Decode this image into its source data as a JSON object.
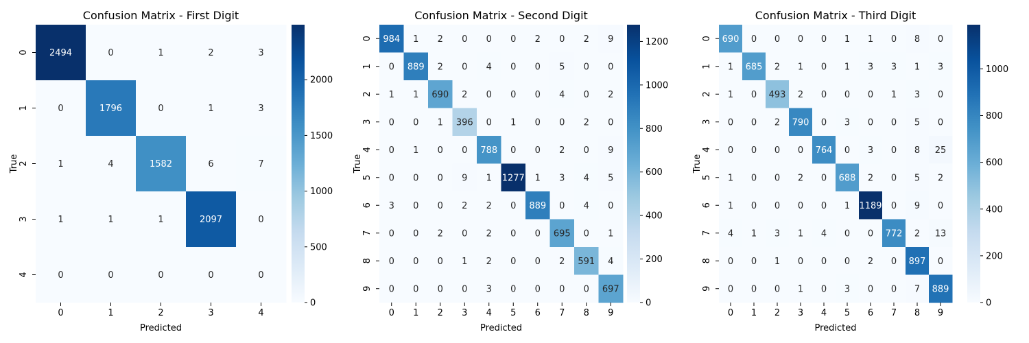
{
  "chart_data": [
    {
      "type": "heatmap",
      "title": "Confusion Matrix - First Digit",
      "xlabel": "Predicted",
      "ylabel": "True",
      "x_categories": [
        "0",
        "1",
        "2",
        "3",
        "4"
      ],
      "y_categories": [
        "0",
        "1",
        "2",
        "3",
        "4"
      ],
      "values": [
        [
          2494,
          0,
          1,
          2,
          3
        ],
        [
          0,
          1796,
          0,
          1,
          3
        ],
        [
          1,
          4,
          1582,
          6,
          7
        ],
        [
          1,
          1,
          1,
          2097,
          0
        ],
        [
          0,
          0,
          0,
          0,
          0
        ]
      ],
      "colormap": "Blues",
      "colorbar": {
        "range": [
          0,
          2494
        ],
        "ticks": [
          0,
          500,
          1000,
          1500,
          2000
        ]
      }
    },
    {
      "type": "heatmap",
      "title": "Confusion Matrix - Second Digit",
      "xlabel": "Predicted",
      "ylabel": "True",
      "x_categories": [
        "0",
        "1",
        "2",
        "3",
        "4",
        "5",
        "6",
        "7",
        "8",
        "9"
      ],
      "y_categories": [
        "0",
        "1",
        "2",
        "3",
        "4",
        "5",
        "6",
        "7",
        "8",
        "9"
      ],
      "values": [
        [
          984,
          1,
          2,
          0,
          0,
          0,
          2,
          0,
          2,
          9
        ],
        [
          0,
          889,
          2,
          0,
          4,
          0,
          0,
          5,
          0,
          0
        ],
        [
          1,
          1,
          690,
          2,
          0,
          0,
          0,
          4,
          0,
          2
        ],
        [
          0,
          0,
          1,
          396,
          0,
          1,
          0,
          0,
          2,
          0
        ],
        [
          0,
          1,
          0,
          0,
          788,
          0,
          0,
          2,
          0,
          9
        ],
        [
          0,
          0,
          0,
          9,
          1,
          1277,
          1,
          3,
          4,
          5
        ],
        [
          3,
          0,
          0,
          2,
          2,
          0,
          889,
          0,
          4,
          0
        ],
        [
          0,
          0,
          2,
          0,
          2,
          0,
          0,
          695,
          0,
          1
        ],
        [
          0,
          0,
          0,
          1,
          2,
          0,
          0,
          2,
          591,
          4
        ],
        [
          0,
          0,
          0,
          0,
          3,
          0,
          0,
          0,
          0,
          697
        ]
      ],
      "colormap": "Blues",
      "colorbar": {
        "range": [
          0,
          1277
        ],
        "ticks": [
          0,
          200,
          400,
          600,
          800,
          1000,
          1200
        ]
      }
    },
    {
      "type": "heatmap",
      "title": "Confusion Matrix - Third Digit",
      "xlabel": "Predicted",
      "ylabel": "True",
      "x_categories": [
        "0",
        "1",
        "2",
        "3",
        "4",
        "5",
        "6",
        "7",
        "8",
        "9"
      ],
      "y_categories": [
        "0",
        "1",
        "2",
        "3",
        "4",
        "5",
        "6",
        "7",
        "8",
        "9"
      ],
      "values": [
        [
          690,
          0,
          0,
          0,
          0,
          1,
          1,
          0,
          8,
          0
        ],
        [
          1,
          685,
          2,
          1,
          0,
          1,
          3,
          3,
          1,
          3
        ],
        [
          1,
          0,
          493,
          2,
          0,
          0,
          0,
          1,
          3,
          0
        ],
        [
          0,
          0,
          2,
          790,
          0,
          3,
          0,
          0,
          5,
          0
        ],
        [
          0,
          0,
          0,
          0,
          764,
          0,
          3,
          0,
          8,
          25
        ],
        [
          1,
          0,
          0,
          2,
          0,
          688,
          2,
          0,
          5,
          2
        ],
        [
          1,
          0,
          0,
          0,
          0,
          1,
          1189,
          0,
          9,
          0
        ],
        [
          4,
          1,
          3,
          1,
          4,
          0,
          0,
          772,
          2,
          13
        ],
        [
          0,
          0,
          1,
          0,
          0,
          0,
          2,
          0,
          897,
          0
        ],
        [
          0,
          0,
          0,
          1,
          0,
          3,
          0,
          0,
          7,
          889
        ]
      ],
      "colormap": "Blues",
      "colorbar": {
        "range": [
          0,
          1189
        ],
        "ticks": [
          0,
          200,
          400,
          600,
          800,
          1000
        ]
      }
    }
  ]
}
